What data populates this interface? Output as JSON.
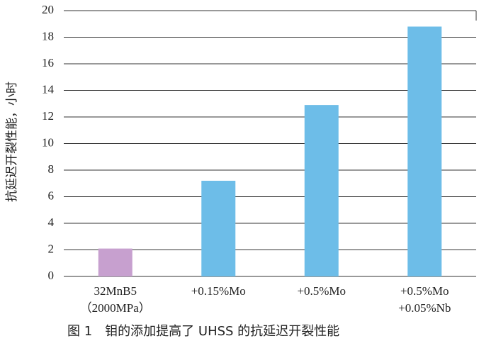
{
  "chart_data": {
    "type": "bar",
    "caption": "图 1　钼的添加提高了 UHSS 的抗延迟开裂性能",
    "y_label": "抗延迟开裂性能，小时",
    "categories": [
      [
        "32MnB5",
        "（2000MPa）"
      ],
      [
        "+0.15%Mo"
      ],
      [
        "+0.5%Mo"
      ],
      [
        "+0.5%Mo",
        "+0.05%Nb"
      ]
    ],
    "values": [
      2.1,
      7.2,
      12.9,
      18.8
    ],
    "colors": [
      "#c7a0cf",
      "#6dbde8",
      "#6dbde8",
      "#6dbde8"
    ],
    "ylim": [
      0,
      20
    ],
    "yticks": [
      0,
      2,
      4,
      6,
      8,
      10,
      12,
      14,
      16,
      18,
      20
    ],
    "grid": true
  }
}
